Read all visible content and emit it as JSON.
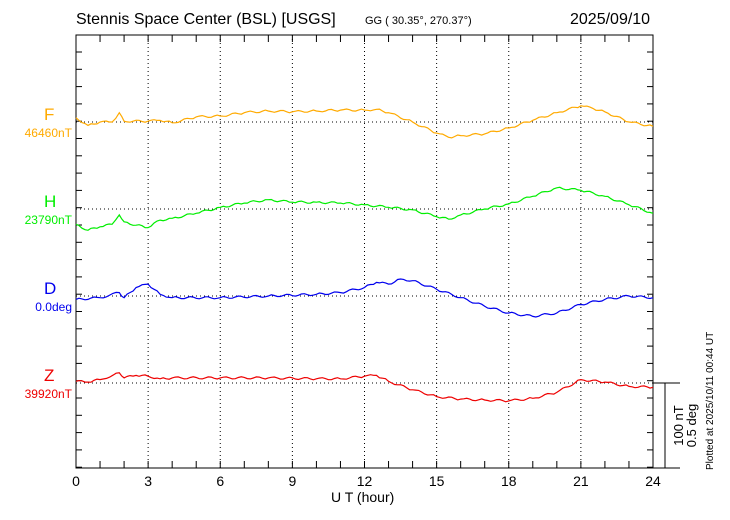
{
  "chart_data": {
    "type": "line",
    "title": "Stennis Space Center (BSL)  [USGS]",
    "coords": "GG ( 30.35°, 270.37°)",
    "date": "2025/09/10",
    "xlabel": "U T (hour)",
    "xlim": [
      0,
      24
    ],
    "xticks": [
      "0",
      "3",
      "6",
      "9",
      "12",
      "15",
      "18",
      "21",
      "24"
    ],
    "scale_bar": [
      "100 nT",
      "0.5 deg"
    ],
    "plotted_note": "Plotted at 2025/10/11 00:44 UT",
    "series": [
      {
        "name": "F",
        "baseline_label": "46460nT",
        "unit": "nT",
        "color": "#ffaa00",
        "x": [
          0,
          0.5,
          1,
          1.5,
          1.8,
          2,
          3,
          3.5,
          4,
          5,
          6,
          7,
          8,
          9,
          10,
          11,
          12,
          12.5,
          13,
          14,
          15,
          15.5,
          16,
          17,
          18,
          19,
          20,
          21,
          21.5,
          22,
          23,
          24
        ],
        "values": [
          5,
          -4,
          0,
          0,
          11,
          1,
          1,
          2,
          -1,
          6,
          7,
          11,
          13,
          12,
          13,
          14,
          14,
          15,
          11,
          0,
          -13,
          -18,
          -16,
          -14,
          -7,
          2,
          11,
          19,
          16,
          12,
          0,
          -5
        ]
      },
      {
        "name": "H",
        "baseline_label": "23790nT",
        "unit": "nT",
        "color": "#00ee00",
        "x": [
          0,
          0.5,
          1,
          1.5,
          1.8,
          2,
          2.5,
          3,
          3.5,
          4,
          5,
          6,
          7,
          8,
          9,
          10,
          11,
          12,
          13,
          14,
          15,
          15.5,
          16,
          17,
          18,
          19,
          20,
          21,
          22,
          23,
          24
        ],
        "values": [
          -18,
          -25,
          -21,
          -18,
          -7,
          -15,
          -19,
          -22,
          -13,
          -11,
          -5,
          2,
          7,
          11,
          8,
          8,
          7,
          5,
          2,
          -1,
          -9,
          -12,
          -7,
          0,
          6,
          15,
          25,
          22,
          15,
          5,
          -5
        ]
      },
      {
        "name": "D",
        "baseline_label": "0.0deg",
        "unit": "deg",
        "color": "#0000ee",
        "x": [
          0,
          1,
          1.8,
          2,
          2.5,
          3,
          3.5,
          4,
          6,
          8,
          10,
          11,
          12,
          12.5,
          13,
          13.5,
          14,
          15,
          16,
          17,
          18,
          19,
          20,
          21,
          22,
          23,
          24
        ],
        "values": [
          -0.02,
          -0.01,
          0.02,
          -0.01,
          0.05,
          0.07,
          0.01,
          -0.01,
          -0.01,
          0,
          0.01,
          0.02,
          0.05,
          0.08,
          0.07,
          0.1,
          0.09,
          0.04,
          -0.01,
          -0.06,
          -0.1,
          -0.12,
          -0.1,
          -0.05,
          -0.02,
          0,
          -0.01
        ]
      },
      {
        "name": "Z",
        "baseline_label": "39920nT",
        "unit": "nT",
        "color": "#ee0000",
        "x": [
          0,
          0.5,
          1,
          1.8,
          2,
          2.5,
          3,
          3.5,
          4,
          6,
          8,
          10,
          11,
          12,
          12.5,
          13,
          14,
          15,
          16,
          17,
          18,
          19,
          20,
          21,
          22,
          23,
          24
        ],
        "values": [
          2,
          1,
          4,
          12,
          6,
          9,
          8,
          5,
          6,
          6,
          6,
          5,
          5,
          8,
          9,
          2,
          -8,
          -16,
          -19,
          -20,
          -21,
          -18,
          -11,
          4,
          1,
          -4,
          -5
        ]
      }
    ]
  }
}
